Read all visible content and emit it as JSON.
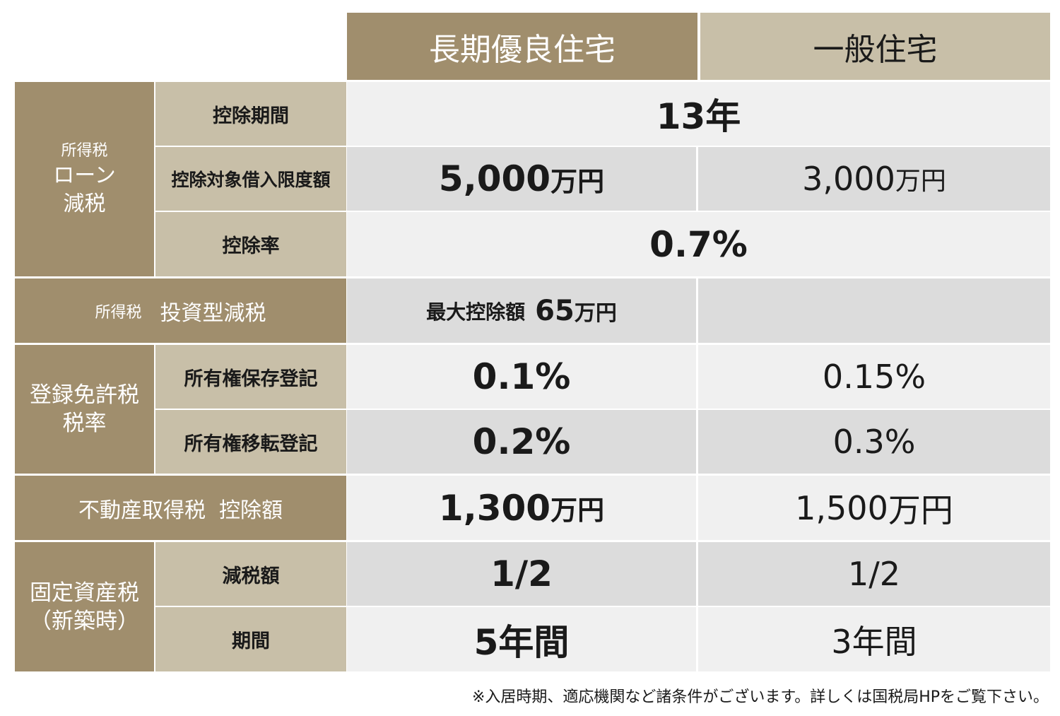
{
  "columns": {
    "premium": "長期優良住宅",
    "general": "一般住宅"
  },
  "sections": {
    "loan": {
      "category_small": "所得税",
      "category_line1": "ローン",
      "category_line2": "減税",
      "rows": {
        "period": {
          "label": "控除期間",
          "value": "13年"
        },
        "limit": {
          "label": "控除対象借入限度額",
          "premium_num": "5,000",
          "premium_unit": "万円",
          "general_num": "3,000",
          "general_unit": "万円"
        },
        "rate": {
          "label": "控除率",
          "value": "0.7%"
        }
      }
    },
    "investment": {
      "category_small": "所得税",
      "category_main": "投資型減税",
      "premium_prefix": "最大控除額",
      "premium_num": "65",
      "premium_unit": "万円",
      "general": ""
    },
    "registration": {
      "category_line1": "登録免許税",
      "category_line2": "税率",
      "rows": {
        "preservation": {
          "label": "所有権保存登記",
          "premium": "0.1%",
          "general": "0.15%"
        },
        "transfer": {
          "label": "所有権移転登記",
          "premium": "0.2%",
          "general": "0.3%"
        }
      }
    },
    "acquisition": {
      "category": "不動産取得税  控除額",
      "premium_num": "1,300",
      "premium_unit": "万円",
      "general_num": "1,500",
      "general_unit": "万円"
    },
    "property": {
      "category_line1": "固定資産税",
      "category_line2": "（新築時）",
      "rows": {
        "reduction": {
          "label": "減税額",
          "premium": "1/2",
          "general": "1/2"
        },
        "period": {
          "label": "期間",
          "premium": "5年間",
          "general": "3年間"
        }
      }
    }
  },
  "footnote": "※入居時期、適応機関など諸条件がございます。詳しくは国税局HPをご覧下さい。",
  "colors": {
    "header_dark": "#a08e6d",
    "header_light": "#c8bfa8",
    "row_light": "#f0f0f0",
    "row_gray": "#dcdcdc"
  }
}
